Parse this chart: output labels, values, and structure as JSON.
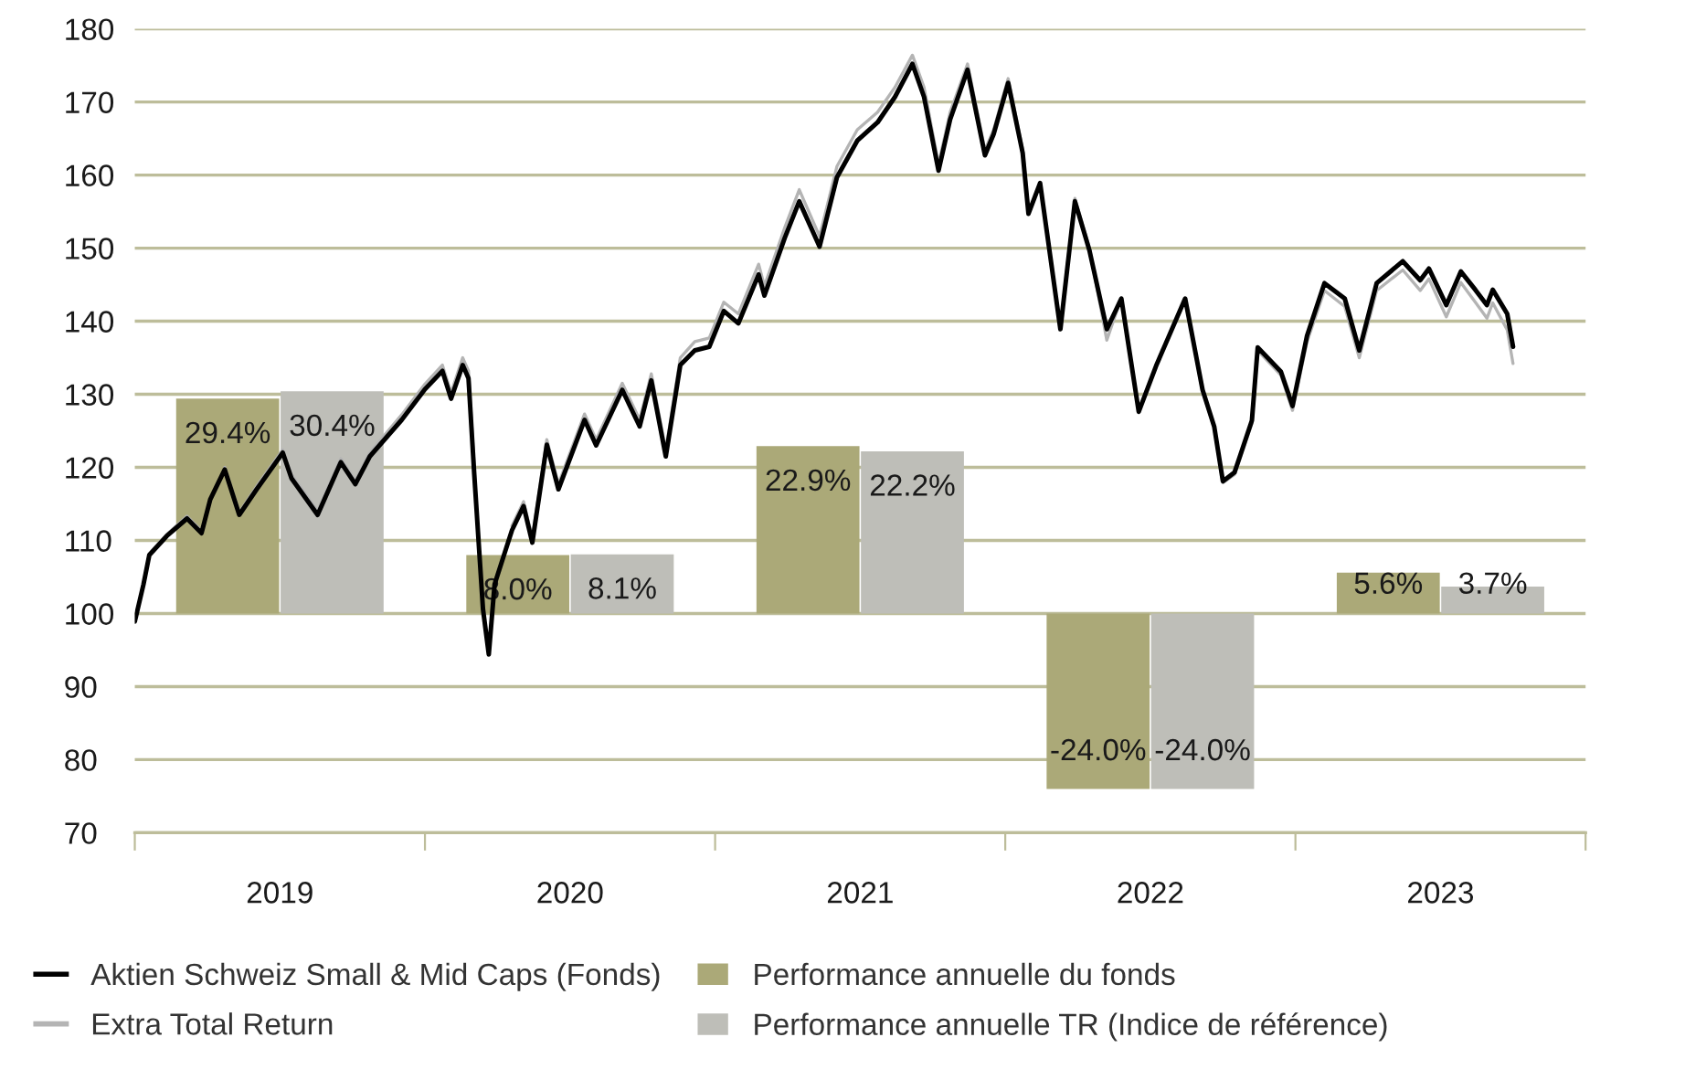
{
  "chart_data": {
    "type": "line",
    "xlim": [
      2019,
      2024
    ],
    "xticks": [
      {
        "value": 2019,
        "label": null
      },
      {
        "value": 2019.5,
        "label": "2019"
      },
      {
        "value": 2020,
        "label": null
      },
      {
        "value": 2020.5,
        "label": "2020"
      },
      {
        "value": 2021,
        "label": null
      },
      {
        "value": 2021.5,
        "label": "2021"
      },
      {
        "value": 2022,
        "label": null
      },
      {
        "value": 2022.5,
        "label": "2022"
      },
      {
        "value": 2023,
        "label": null
      },
      {
        "value": 2023.5,
        "label": "2023"
      },
      {
        "value": 2024,
        "label": null
      }
    ],
    "ylim": [
      70,
      180
    ],
    "yticks": [
      70,
      80,
      90,
      100,
      110,
      120,
      130,
      140,
      150,
      160,
      170,
      180
    ],
    "grid": "y",
    "legend": "bottom",
    "series": [
      {
        "name": "Performance annuelle du fonds",
        "type": "bar",
        "color": "#aba978",
        "x": [
          2019.32,
          2020.32,
          2021.32,
          2022.32,
          2023.32
        ],
        "base": [
          100,
          100,
          100,
          100,
          100
        ],
        "values": [
          29.4,
          8.0,
          22.9,
          -24.0,
          5.6
        ],
        "value_labels": [
          "29.4%",
          "8.0%",
          "22.9%",
          "-24.0%",
          "5.6%"
        ]
      },
      {
        "name": "Performance annuelle TR (Indice de référence)",
        "type": "bar",
        "color": "#bebeb8",
        "x": [
          2019.68,
          2020.68,
          2021.68,
          2022.68,
          2023.68
        ],
        "base": [
          100,
          100,
          100,
          100,
          100
        ],
        "values": [
          30.4,
          8.1,
          22.2,
          -24.0,
          3.7
        ],
        "value_labels": [
          "30.4%",
          "8.1%",
          "22.2%",
          "-24.0%",
          "3.7%"
        ]
      },
      {
        "name": "Extra Total Return",
        "color": "#b4b4b4",
        "x": [
          2019.0,
          2019.03,
          2019.05,
          2019.11,
          2019.18,
          2019.23,
          2019.26,
          2019.31,
          2019.36,
          2019.42,
          2019.51,
          2019.54,
          2019.63,
          2019.71,
          2019.76,
          2019.81,
          2019.92,
          2020.0,
          2020.06,
          2020.09,
          2020.13,
          2020.15,
          2020.17,
          2020.2,
          2020.22,
          2020.24,
          2020.3,
          2020.34,
          2020.37,
          2020.42,
          2020.46,
          2020.55,
          2020.59,
          2020.68,
          2020.74,
          2020.78,
          2020.83,
          2020.88,
          2020.93,
          2020.98,
          2021.03,
          2021.08,
          2021.15,
          2021.17,
          2021.24,
          2021.29,
          2021.36,
          2021.42,
          2021.49,
          2021.56,
          2021.62,
          2021.68,
          2021.72,
          2021.77,
          2021.81,
          2021.87,
          2021.93,
          2021.96,
          2022.01,
          2022.06,
          2022.08,
          2022.12,
          2022.19,
          2022.24,
          2022.29,
          2022.35,
          2022.4,
          2022.46,
          2022.52,
          2022.62,
          2022.68,
          2022.72,
          2022.75,
          2022.79,
          2022.85,
          2022.87,
          2022.95,
          2022.99,
          2023.04,
          2023.1,
          2023.17,
          2023.22,
          2023.28,
          2023.37,
          2023.43,
          2023.46,
          2023.52,
          2023.57,
          2023.62,
          2023.66,
          2023.68,
          2023.73,
          2023.75
        ],
        "values": [
          99.0,
          104,
          108.2,
          110.8,
          113.3,
          111.3,
          null,
          120,
          113.8,
          117.4,
          122.4,
          119,
          114,
          121.2,
          118.2,
          122,
          127.2,
          131.4,
          134,
          130.2,
          135,
          133.2,
          120,
          null,
          null,
          null,
          112,
          115.3,
          110.3,
          123.8,
          117.7,
          127.3,
          123.8,
          131.5,
          126.5,
          132.8,
          122.3,
          135,
          137.2,
          137.7,
          142.6,
          141,
          147.8,
          144.8,
          152.8,
          158,
          151.6,
          161.2,
          166.2,
          168.6,
          172,
          176.4,
          172,
          161.5,
          168.6,
          175.2,
          163.4,
          166.2,
          173.2,
          163.5,
          155.2,
          null,
          139.2,
          156.8,
          150,
          137.4,
          143.2,
          127.6,
          133.8,
          143,
          130.4,
          125.4,
          117.9,
          119,
          126,
          136,
          132.6,
          127.8,
          137.2,
          144.2,
          142,
          135,
          144.2,
          147,
          144.2,
          145.8,
          140.6,
          145.3,
          142.6,
          140.4,
          142.5,
          138.8,
          134.2
        ]
      },
      {
        "name": "Aktien Schweiz Small & Mid Caps (Fonds)",
        "color": "#000000",
        "x": [
          2019.0,
          2019.03,
          2019.05,
          2019.11,
          2019.18,
          2019.23,
          2019.26,
          2019.31,
          2019.36,
          2019.42,
          2019.51,
          2019.54,
          2019.63,
          2019.71,
          2019.76,
          2019.81,
          2019.92,
          2020.0,
          2020.06,
          2020.09,
          2020.13,
          2020.15,
          2020.17,
          2020.2,
          2020.22,
          2020.24,
          2020.3,
          2020.34,
          2020.37,
          2020.42,
          2020.46,
          2020.55,
          2020.59,
          2020.68,
          2020.74,
          2020.78,
          2020.83,
          2020.88,
          2020.93,
          2020.98,
          2021.03,
          2021.08,
          2021.15,
          2021.17,
          2021.24,
          2021.29,
          2021.36,
          2021.42,
          2021.49,
          2021.56,
          2021.62,
          2021.68,
          2021.72,
          2021.77,
          2021.81,
          2021.87,
          2021.93,
          2021.96,
          2022.01,
          2022.06,
          2022.08,
          2022.12,
          2022.19,
          2022.24,
          2022.29,
          2022.35,
          2022.4,
          2022.46,
          2022.52,
          2022.62,
          2022.68,
          2022.72,
          2022.75,
          2022.79,
          2022.85,
          2022.87,
          2022.95,
          2022.99,
          2023.04,
          2023.1,
          2023.17,
          2023.22,
          2023.28,
          2023.37,
          2023.43,
          2023.46,
          2023.52,
          2023.57,
          2023.62,
          2023.66,
          2023.68,
          2023.73,
          2023.75
        ],
        "values": [
          98.9,
          104,
          108,
          110.6,
          113,
          111,
          115.6,
          119.7,
          113.5,
          117,
          122,
          118.5,
          113.5,
          120.7,
          117.7,
          121.5,
          126.5,
          130.7,
          133.2,
          129.4,
          134,
          132.2,
          119,
          100.6,
          94.4,
          104,
          111.4,
          114.7,
          109.7,
          123.1,
          117,
          126.5,
          123,
          130.6,
          125.6,
          131.9,
          121.5,
          134,
          136,
          136.5,
          141.4,
          139.7,
          146.4,
          143.5,
          151.4,
          156.4,
          150.2,
          159.7,
          164.7,
          167.2,
          170.7,
          175.2,
          170.7,
          160.6,
          167.6,
          174.4,
          162.7,
          165.6,
          172.6,
          163,
          154.7,
          158.9,
          138.9,
          156.4,
          149.7,
          138.9,
          143.1,
          127.6,
          133.9,
          143.1,
          130.6,
          125.6,
          118.1,
          119.3,
          126.4,
          136.4,
          133.1,
          128.4,
          138,
          145.2,
          143.1,
          136,
          145.2,
          148.2,
          145.6,
          147.2,
          142.2,
          146.8,
          144.3,
          142.2,
          144.3,
          141,
          136.5
        ]
      }
    ]
  }
}
